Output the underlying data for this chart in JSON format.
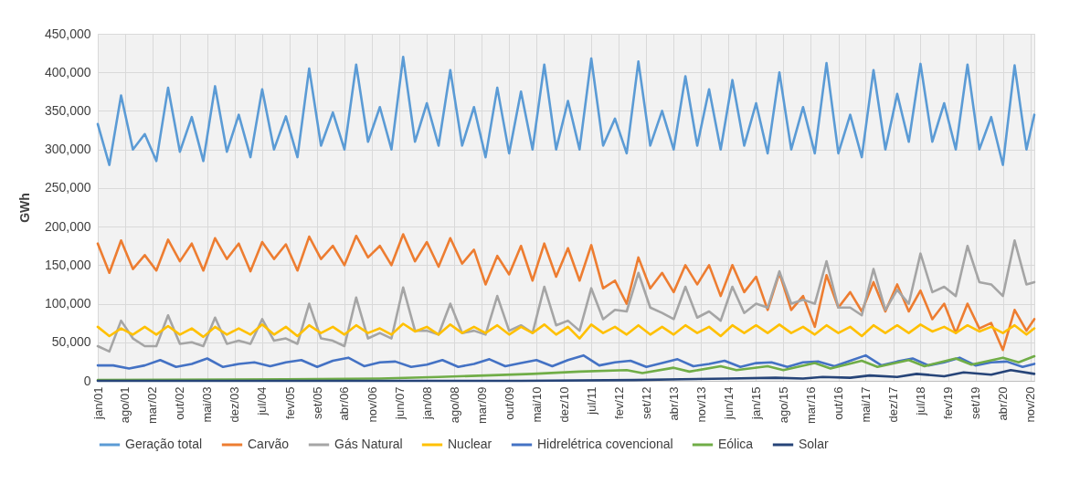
{
  "chart_data": {
    "type": "line",
    "ylabel": "GWh",
    "grid": true,
    "legend": "bottom",
    "line_style": "solid",
    "xlim": [
      "2001-01",
      "2020-12"
    ],
    "xticks": [
      {
        "value": "2001-01",
        "label": "jan/01"
      },
      {
        "value": "2001-08",
        "label": "ago/01"
      },
      {
        "value": "2002-03",
        "label": "mar/02"
      },
      {
        "value": "2002-10",
        "label": "out/02"
      },
      {
        "value": "2003-05",
        "label": "mai/03"
      },
      {
        "value": "2003-12",
        "label": "dez/03"
      },
      {
        "value": "2004-07",
        "label": "jul/04"
      },
      {
        "value": "2005-02",
        "label": "fev/05"
      },
      {
        "value": "2005-09",
        "label": "set/05"
      },
      {
        "value": "2006-04",
        "label": "abr/06"
      },
      {
        "value": "2006-11",
        "label": "nov/06"
      },
      {
        "value": "2007-06",
        "label": "jun/07"
      },
      {
        "value": "2008-01",
        "label": "jan/08"
      },
      {
        "value": "2008-08",
        "label": "ago/08"
      },
      {
        "value": "2009-03",
        "label": "mar/09"
      },
      {
        "value": "2009-10",
        "label": "out/09"
      },
      {
        "value": "2010-05",
        "label": "mai/10"
      },
      {
        "value": "2010-12",
        "label": "dez/10"
      },
      {
        "value": "2011-07",
        "label": "jul/11"
      },
      {
        "value": "2012-02",
        "label": "fev/12"
      },
      {
        "value": "2012-09",
        "label": "set/12"
      },
      {
        "value": "2013-04",
        "label": "abr/13"
      },
      {
        "value": "2013-11",
        "label": "nov/13"
      },
      {
        "value": "2014-06",
        "label": "jun/14"
      },
      {
        "value": "2015-01",
        "label": "jan/15"
      },
      {
        "value": "2015-08",
        "label": "ago/15"
      },
      {
        "value": "2016-03",
        "label": "mar/16"
      },
      {
        "value": "2016-10",
        "label": "out/16"
      },
      {
        "value": "2017-05",
        "label": "mai/17"
      },
      {
        "value": "2017-12",
        "label": "dez/17"
      },
      {
        "value": "2018-07",
        "label": "jul/18"
      },
      {
        "value": "2019-02",
        "label": "fev/19"
      },
      {
        "value": "2019-09",
        "label": "set/19"
      },
      {
        "value": "2020-04",
        "label": "abr/20"
      },
      {
        "value": "2020-11",
        "label": "nov/20"
      }
    ],
    "ylim": [
      0,
      450000
    ],
    "yticks": [
      0,
      {
        "value": 50000,
        "label": "50,000"
      },
      {
        "value": 100000,
        "label": "100,000"
      },
      {
        "value": 150000,
        "label": "150,000"
      },
      {
        "value": 200000,
        "label": "200,000"
      },
      {
        "value": 250000,
        "label": "250,000"
      },
      {
        "value": 300000,
        "label": "300,000"
      },
      {
        "value": 350000,
        "label": "350,000"
      },
      {
        "value": 400000,
        "label": "400,000"
      },
      {
        "value": 450000,
        "label": "450,000"
      }
    ],
    "x": [
      "2001-01",
      "2001-04",
      "2001-07",
      "2001-10",
      "2002-01",
      "2002-04",
      "2002-07",
      "2002-10",
      "2003-01",
      "2003-04",
      "2003-07",
      "2003-10",
      "2004-01",
      "2004-04",
      "2004-07",
      "2004-10",
      "2005-01",
      "2005-04",
      "2005-07",
      "2005-10",
      "2006-01",
      "2006-04",
      "2006-07",
      "2006-10",
      "2007-01",
      "2007-04",
      "2007-07",
      "2007-10",
      "2008-01",
      "2008-04",
      "2008-07",
      "2008-10",
      "2009-01",
      "2009-04",
      "2009-07",
      "2009-10",
      "2010-01",
      "2010-04",
      "2010-07",
      "2010-10",
      "2011-01",
      "2011-04",
      "2011-07",
      "2011-10",
      "2012-01",
      "2012-04",
      "2012-07",
      "2012-10",
      "2013-01",
      "2013-04",
      "2013-07",
      "2013-10",
      "2014-01",
      "2014-04",
      "2014-07",
      "2014-10",
      "2015-01",
      "2015-04",
      "2015-07",
      "2015-10",
      "2016-01",
      "2016-04",
      "2016-07",
      "2016-10",
      "2017-01",
      "2017-04",
      "2017-07",
      "2017-10",
      "2018-01",
      "2018-04",
      "2018-07",
      "2018-10",
      "2019-01",
      "2019-04",
      "2019-07",
      "2019-10",
      "2020-01",
      "2020-04",
      "2020-07",
      "2020-10",
      "2020-12"
    ],
    "series": [
      {
        "name": "Geração total",
        "color": "#5b9bd5",
        "values": [
          333000,
          280000,
          370000,
          300000,
          320000,
          285000,
          380000,
          297000,
          342000,
          285000,
          382000,
          297000,
          345000,
          290000,
          378000,
          300000,
          343000,
          290000,
          405000,
          305000,
          348000,
          300000,
          410000,
          310000,
          355000,
          300000,
          420000,
          310000,
          360000,
          305000,
          403000,
          305000,
          355000,
          290000,
          380000,
          295000,
          375000,
          300000,
          410000,
          300000,
          363000,
          300000,
          418000,
          305000,
          340000,
          295000,
          414000,
          305000,
          350000,
          300000,
          395000,
          305000,
          378000,
          300000,
          390000,
          305000,
          360000,
          295000,
          400000,
          300000,
          355000,
          295000,
          412000,
          295000,
          345000,
          290000,
          403000,
          300000,
          372000,
          310000,
          411000,
          310000,
          360000,
          300000,
          410000,
          300000,
          342000,
          280000,
          409000,
          300000,
          345000
        ]
      },
      {
        "name": "Carvão",
        "color": "#ed7d31",
        "values": [
          178000,
          140000,
          182000,
          145000,
          163000,
          143000,
          183000,
          155000,
          178000,
          143000,
          185000,
          158000,
          178000,
          142000,
          180000,
          158000,
          177000,
          143000,
          187000,
          158000,
          175000,
          150000,
          188000,
          160000,
          175000,
          150000,
          190000,
          155000,
          180000,
          148000,
          185000,
          152000,
          170000,
          125000,
          162000,
          138000,
          175000,
          130000,
          178000,
          135000,
          172000,
          130000,
          176000,
          120000,
          130000,
          100000,
          160000,
          120000,
          140000,
          115000,
          150000,
          125000,
          150000,
          110000,
          150000,
          115000,
          135000,
          92000,
          140000,
          92000,
          110000,
          70000,
          137000,
          95000,
          115000,
          90000,
          128000,
          90000,
          125000,
          90000,
          117000,
          80000,
          100000,
          62000,
          100000,
          68000,
          75000,
          40000,
          92000,
          65000,
          80000
        ]
      },
      {
        "name": "Gás Natural",
        "color": "#a5a5a5",
        "values": [
          45000,
          38000,
          78000,
          55000,
          45000,
          45000,
          85000,
          48000,
          50000,
          45000,
          82000,
          48000,
          52000,
          48000,
          80000,
          52000,
          55000,
          48000,
          100000,
          55000,
          52000,
          45000,
          108000,
          55000,
          62000,
          55000,
          121000,
          65000,
          65000,
          60000,
          100000,
          62000,
          65000,
          60000,
          110000,
          65000,
          72000,
          62000,
          122000,
          72000,
          78000,
          65000,
          120000,
          80000,
          92000,
          90000,
          140000,
          95000,
          88000,
          80000,
          122000,
          82000,
          90000,
          78000,
          122000,
          88000,
          100000,
          95000,
          142000,
          100000,
          105000,
          100000,
          155000,
          95000,
          95000,
          85000,
          145000,
          92000,
          118000,
          100000,
          165000,
          115000,
          122000,
          110000,
          175000,
          128000,
          125000,
          110000,
          182000,
          125000,
          128000
        ]
      },
      {
        "name": "Nuclear",
        "color": "#ffc000",
        "values": [
          70000,
          58000,
          68000,
          60000,
          70000,
          60000,
          71000,
          60000,
          68000,
          57000,
          70000,
          60000,
          68000,
          60000,
          73000,
          60000,
          70000,
          58000,
          72000,
          62000,
          70000,
          60000,
          72000,
          62000,
          68000,
          60000,
          74000,
          64000,
          70000,
          60000,
          73000,
          62000,
          70000,
          62000,
          72000,
          60000,
          70000,
          62000,
          73000,
          60000,
          70000,
          55000,
          73000,
          62000,
          70000,
          60000,
          72000,
          60000,
          70000,
          60000,
          72000,
          62000,
          70000,
          58000,
          72000,
          62000,
          72000,
          62000,
          73000,
          62000,
          70000,
          60000,
          72000,
          62000,
          70000,
          58000,
          72000,
          62000,
          72000,
          62000,
          73000,
          64000,
          70000,
          62000,
          72000,
          64000,
          70000,
          62000,
          72000,
          60000,
          68000
        ]
      },
      {
        "name": "Hidrelétrica covencional",
        "color": "#4472c4",
        "x": [
          "2001-01",
          "2001-05",
          "2001-09",
          "2002-01",
          "2002-05",
          "2002-09",
          "2003-01",
          "2003-05",
          "2003-09",
          "2004-01",
          "2004-05",
          "2004-09",
          "2005-01",
          "2005-05",
          "2005-09",
          "2006-01",
          "2006-05",
          "2006-09",
          "2007-01",
          "2007-05",
          "2007-09",
          "2008-01",
          "2008-05",
          "2008-09",
          "2009-01",
          "2009-05",
          "2009-09",
          "2010-01",
          "2010-05",
          "2010-09",
          "2011-01",
          "2011-05",
          "2011-09",
          "2012-01",
          "2012-05",
          "2012-09",
          "2013-01",
          "2013-05",
          "2013-09",
          "2014-01",
          "2014-05",
          "2014-09",
          "2015-01",
          "2015-05",
          "2015-09",
          "2016-01",
          "2016-05",
          "2016-09",
          "2017-01",
          "2017-05",
          "2017-09",
          "2018-01",
          "2018-05",
          "2018-09",
          "2019-01",
          "2019-05",
          "2019-09",
          "2020-01",
          "2020-05",
          "2020-09",
          "2020-12"
        ],
        "values": [
          20000,
          20000,
          16000,
          20000,
          27000,
          18000,
          22000,
          29000,
          18000,
          22000,
          24000,
          19000,
          24000,
          27000,
          18000,
          26000,
          30000,
          19000,
          24000,
          25000,
          18000,
          21000,
          27000,
          18000,
          22000,
          28000,
          19000,
          23000,
          27000,
          19000,
          27000,
          33000,
          20000,
          24000,
          26000,
          18000,
          23000,
          28000,
          19000,
          22000,
          26000,
          18000,
          23000,
          24000,
          18000,
          24000,
          25000,
          19000,
          26000,
          33000,
          20000,
          25000,
          29000,
          20000,
          24000,
          30000,
          20000,
          24000,
          25000,
          18000,
          22000
        ]
      },
      {
        "name": "Eólica",
        "color": "#70ad47",
        "x": [
          "2001-01",
          "2005-01",
          "2007-01",
          "2008-04",
          "2009-04",
          "2010-04",
          "2011-04",
          "2012-04",
          "2012-08",
          "2013-04",
          "2013-08",
          "2014-04",
          "2014-08",
          "2015-04",
          "2015-08",
          "2016-04",
          "2016-08",
          "2017-04",
          "2017-08",
          "2018-04",
          "2018-08",
          "2019-04",
          "2019-08",
          "2020-04",
          "2020-08",
          "2020-12"
        ],
        "values": [
          1000,
          2000,
          3000,
          5000,
          7000,
          9000,
          12000,
          14000,
          10000,
          17000,
          12000,
          19000,
          14000,
          19000,
          14000,
          23000,
          16000,
          26000,
          18000,
          27000,
          19000,
          29000,
          21000,
          30000,
          24000,
          32000
        ]
      },
      {
        "name": "Solar",
        "color": "#264478",
        "x": [
          "2001-01",
          "2010-01",
          "2012-06",
          "2013-06",
          "2014-06",
          "2015-06",
          "2016-01",
          "2016-06",
          "2017-01",
          "2017-06",
          "2018-01",
          "2018-06",
          "2019-01",
          "2019-06",
          "2020-01",
          "2020-06",
          "2020-12"
        ],
        "values": [
          0,
          0,
          1000,
          2000,
          3000,
          4000,
          3000,
          5000,
          4000,
          7000,
          5000,
          9000,
          6000,
          11000,
          8000,
          14000,
          9000
        ]
      }
    ]
  }
}
